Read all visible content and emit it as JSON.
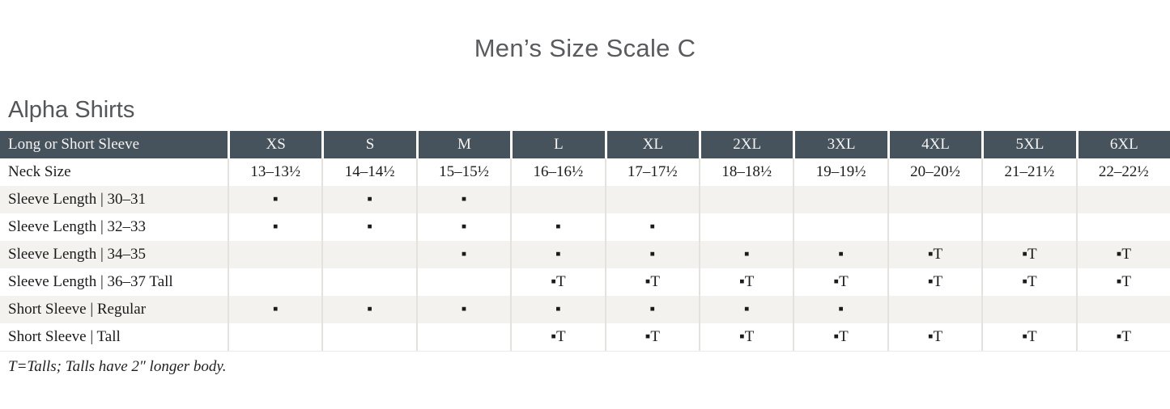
{
  "page": {
    "title": "Men’s Size Scale C",
    "section_heading": "Alpha Shirts",
    "footnote": "T=Talls; Talls have 2″ longer body."
  },
  "colors": {
    "header_bg": "#46525c",
    "header_text": "#f4f3f1",
    "row_stripe": "#f3f2ef",
    "body_text": "#1b1b1b",
    "heading_text": "#58595b",
    "cell_divider": "#e3e2df"
  },
  "legend": {
    "available_mark": "▪",
    "tall_mark": "▪T"
  },
  "table": {
    "corner_label": "Long or Short Sleeve",
    "size_columns": [
      "XS",
      "S",
      "M",
      "L",
      "XL",
      "2XL",
      "3XL",
      "4XL",
      "5XL",
      "6XL"
    ],
    "rows": [
      {
        "label": "Neck Size",
        "cells": [
          "13–13½",
          "14–14½",
          "15–15½",
          "16–16½",
          "17–17½",
          "18–18½",
          "19–19½",
          "20–20½",
          "21–21½",
          "22–22½"
        ]
      },
      {
        "label": "Sleeve Length | 30–31",
        "cells": [
          "▪",
          "▪",
          "▪",
          "",
          "",
          "",
          "",
          "",
          "",
          ""
        ]
      },
      {
        "label": "Sleeve Length | 32–33",
        "cells": [
          "▪",
          "▪",
          "▪",
          "▪",
          "▪",
          "",
          "",
          "",
          "",
          ""
        ]
      },
      {
        "label": "Sleeve Length | 34–35",
        "cells": [
          "",
          "",
          "▪",
          "▪",
          "▪",
          "▪",
          "▪",
          "▪T",
          "▪T",
          "▪T"
        ]
      },
      {
        "label": "Sleeve Length | 36–37 Tall",
        "cells": [
          "",
          "",
          "",
          "▪T",
          "▪T",
          "▪T",
          "▪T",
          "▪T",
          "▪T",
          "▪T"
        ]
      },
      {
        "label": "Short Sleeve | Regular",
        "cells": [
          "▪",
          "▪",
          "▪",
          "▪",
          "▪",
          "▪",
          "▪",
          "",
          "",
          ""
        ]
      },
      {
        "label": "Short Sleeve | Tall",
        "cells": [
          "",
          "",
          "",
          "▪T",
          "▪T",
          "▪T",
          "▪T",
          "▪T",
          "▪T",
          "▪T"
        ]
      }
    ]
  }
}
